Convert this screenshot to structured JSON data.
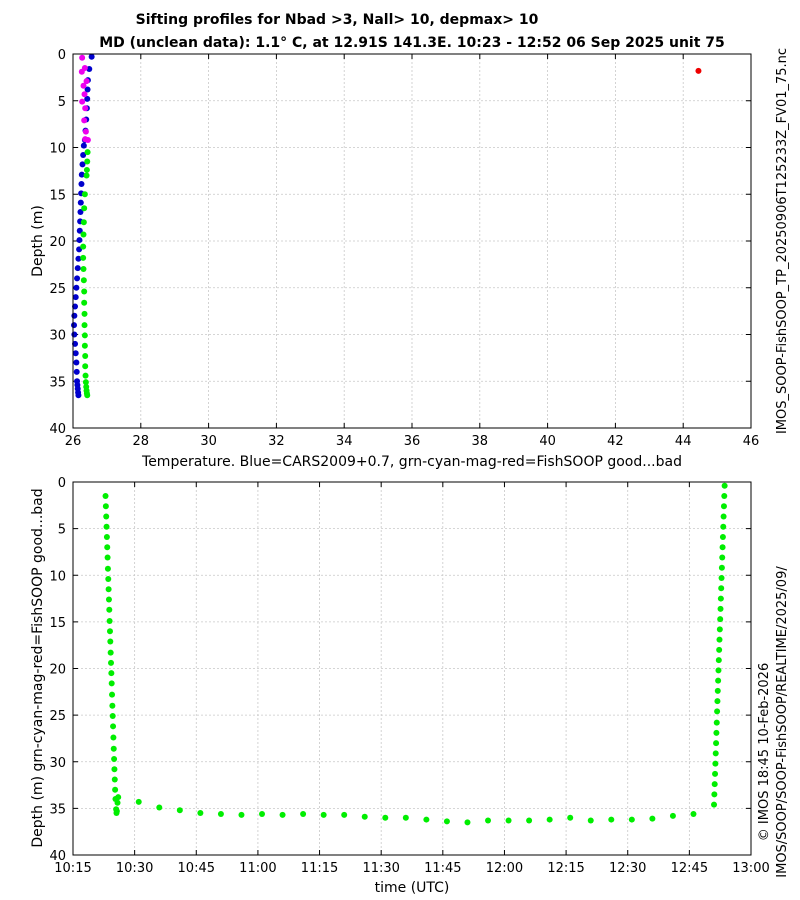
{
  "page": {
    "side_label_right": "IMOS_SOOP-FishSOOP_TP_20250906T125233Z_FV01_75.nc",
    "side_label_footer_1": "© IMOS 18:45 10-Feb-2026",
    "side_label_footer_2": "IMOS/SOOP/SOOP-FishSOOP/REALTIME/2025/09/"
  },
  "colors": {
    "cars": "#0000cc",
    "good": "#00ee00",
    "magenta": "#ee00ee",
    "bad": "#ee0000"
  },
  "chart_data": [
    {
      "type": "scatter",
      "title": "Sifting profiles for Nbad >3, Nall> 10, depmax> 10",
      "subtitle": "MD (unclean data): 1.1° C, at 12.91S 141.3E. 10:23 - 12:52 06 Sep 2025 unit 75",
      "xlabel": "Temperature. Blue=CARS2009+0.7, grn-cyan-mag-red=FishSOOP good...bad",
      "ylabel": "Depth (m)",
      "xlim": [
        26,
        46
      ],
      "ylim": [
        40,
        0
      ],
      "y_reversed": true,
      "xticks": [
        26,
        28,
        30,
        32,
        34,
        36,
        38,
        40,
        42,
        44,
        46
      ],
      "yticks": [
        0,
        5,
        10,
        15,
        20,
        25,
        30,
        35,
        40
      ],
      "grid": true,
      "series": [
        {
          "color": "cars",
          "points": [
            [
              26.55,
              0.3
            ],
            [
              26.48,
              1.6
            ],
            [
              26.44,
              2.8
            ],
            [
              26.43,
              3.8
            ],
            [
              26.42,
              4.8
            ],
            [
              26.41,
              5.8
            ],
            [
              26.39,
              7.0
            ],
            [
              26.37,
              8.2
            ],
            [
              26.35,
              9.2
            ],
            [
              26.32,
              9.8
            ],
            [
              26.3,
              10.8
            ],
            [
              26.28,
              11.8
            ],
            [
              26.26,
              12.9
            ],
            [
              26.25,
              13.9
            ],
            [
              26.24,
              14.9
            ],
            [
              26.23,
              15.9
            ],
            [
              26.22,
              16.9
            ],
            [
              26.21,
              17.9
            ],
            [
              26.2,
              18.9
            ],
            [
              26.19,
              19.9
            ],
            [
              26.18,
              20.9
            ],
            [
              26.16,
              21.9
            ],
            [
              26.14,
              22.9
            ],
            [
              26.12,
              24.0
            ],
            [
              26.1,
              25.0
            ],
            [
              26.08,
              26.0
            ],
            [
              26.06,
              27.0
            ],
            [
              26.04,
              28.0
            ],
            [
              26.03,
              29.0
            ],
            [
              26.04,
              30.0
            ],
            [
              26.06,
              31.0
            ],
            [
              26.08,
              32.0
            ],
            [
              26.1,
              33.0
            ],
            [
              26.11,
              34.0
            ],
            [
              26.12,
              35.0
            ],
            [
              26.13,
              35.4
            ],
            [
              26.14,
              35.8
            ],
            [
              26.15,
              36.2
            ],
            [
              26.16,
              36.5
            ]
          ]
        },
        {
          "color": "good",
          "points": [
            [
              26.43,
              10.5
            ],
            [
              26.42,
              11.5
            ],
            [
              26.41,
              12.4
            ],
            [
              26.4,
              13.0
            ],
            [
              26.35,
              15.0
            ],
            [
              26.33,
              16.5
            ],
            [
              26.32,
              18.0
            ],
            [
              26.31,
              19.3
            ],
            [
              26.3,
              20.6
            ],
            [
              26.3,
              21.8
            ],
            [
              26.31,
              23.0
            ],
            [
              26.32,
              24.2
            ],
            [
              26.33,
              25.4
            ],
            [
              26.33,
              26.6
            ],
            [
              26.34,
              27.8
            ],
            [
              26.34,
              29.0
            ],
            [
              26.35,
              30.1
            ],
            [
              26.35,
              31.2
            ],
            [
              26.36,
              32.3
            ],
            [
              26.36,
              33.4
            ],
            [
              26.37,
              34.4
            ],
            [
              26.38,
              35.1
            ],
            [
              26.39,
              35.6
            ],
            [
              26.4,
              36.0
            ],
            [
              26.41,
              36.3
            ],
            [
              26.42,
              36.5
            ]
          ]
        },
        {
          "color": "magenta",
          "points": [
            [
              26.27,
              0.4
            ],
            [
              26.35,
              1.5
            ],
            [
              26.26,
              1.9
            ],
            [
              26.4,
              2.9
            ],
            [
              26.31,
              3.4
            ],
            [
              26.34,
              4.3
            ],
            [
              26.27,
              5.1
            ],
            [
              26.36,
              5.8
            ],
            [
              26.33,
              7.1
            ],
            [
              26.38,
              8.3
            ],
            [
              26.36,
              9.1
            ],
            [
              26.44,
              9.2
            ]
          ]
        },
        {
          "color": "bad",
          "points": [
            [
              44.45,
              1.8
            ]
          ]
        }
      ]
    },
    {
      "type": "scatter",
      "xlabel": "time (UTC)",
      "ylabel": "Depth (m) grn-cyan-mag-red=FishSOOP good...bad",
      "xlim": [
        "10:15",
        "13:00"
      ],
      "ylim": [
        40,
        0
      ],
      "y_reversed": true,
      "xtick_labels": [
        "10:15",
        "10:30",
        "10:45",
        "11:00",
        "11:15",
        "11:30",
        "11:45",
        "12:00",
        "12:15",
        "12:30",
        "12:45",
        "13:00"
      ],
      "yticks": [
        0,
        5,
        10,
        15,
        20,
        25,
        30,
        35,
        40
      ],
      "grid": true,
      "series": [
        {
          "color": "good",
          "points": [
            [
              "10:22:55",
              1.5
            ],
            [
              "10:23:00",
              2.6
            ],
            [
              "10:23:05",
              3.7
            ],
            [
              "10:23:10",
              4.8
            ],
            [
              "10:23:15",
              5.9
            ],
            [
              "10:23:20",
              7.0
            ],
            [
              "10:23:25",
              8.1
            ],
            [
              "10:23:30",
              9.3
            ],
            [
              "10:23:35",
              10.4
            ],
            [
              "10:23:40",
              11.5
            ],
            [
              "10:23:45",
              12.6
            ],
            [
              "10:23:50",
              13.7
            ],
            [
              "10:23:55",
              14.9
            ],
            [
              "10:24:00",
              16.0
            ],
            [
              "10:24:05",
              17.1
            ],
            [
              "10:24:10",
              18.3
            ],
            [
              "10:24:15",
              19.4
            ],
            [
              "10:24:20",
              20.5
            ],
            [
              "10:24:25",
              21.6
            ],
            [
              "10:24:30",
              22.8
            ],
            [
              "10:24:35",
              24.0
            ],
            [
              "10:24:40",
              25.1
            ],
            [
              "10:24:45",
              26.2
            ],
            [
              "10:24:50",
              27.4
            ],
            [
              "10:24:55",
              28.6
            ],
            [
              "10:25:00",
              29.7
            ],
            [
              "10:25:05",
              30.8
            ],
            [
              "10:25:10",
              31.9
            ],
            [
              "10:25:15",
              33.0
            ],
            [
              "10:25:20",
              34.0
            ],
            [
              "10:25:30",
              35.1
            ],
            [
              "10:25:40",
              35.3
            ],
            [
              "10:25:50",
              34.4
            ],
            [
              "10:26:00",
              33.8
            ],
            [
              "10:25:35",
              35.5
            ],
            [
              "10:31:00",
              34.3
            ],
            [
              "10:36:00",
              34.9
            ],
            [
              "10:41:00",
              35.2
            ],
            [
              "10:46:00",
              35.5
            ],
            [
              "10:51:00",
              35.6
            ],
            [
              "10:56:00",
              35.7
            ],
            [
              "11:01:00",
              35.6
            ],
            [
              "11:06:00",
              35.7
            ],
            [
              "11:11:00",
              35.6
            ],
            [
              "11:16:00",
              35.7
            ],
            [
              "11:21:00",
              35.7
            ],
            [
              "11:26:00",
              35.9
            ],
            [
              "11:31:00",
              36.0
            ],
            [
              "11:36:00",
              36.0
            ],
            [
              "11:41:00",
              36.2
            ],
            [
              "11:46:00",
              36.4
            ],
            [
              "11:51:00",
              36.5
            ],
            [
              "11:56:00",
              36.3
            ],
            [
              "12:01:00",
              36.3
            ],
            [
              "12:06:00",
              36.3
            ],
            [
              "12:11:00",
              36.2
            ],
            [
              "12:16:00",
              36.0
            ],
            [
              "12:21:00",
              36.3
            ],
            [
              "12:26:00",
              36.2
            ],
            [
              "12:31:00",
              36.2
            ],
            [
              "12:36:00",
              36.1
            ],
            [
              "12:41:00",
              35.8
            ],
            [
              "12:46:00",
              35.6
            ],
            [
              "12:51:00",
              34.6
            ],
            [
              "12:51:05",
              33.5
            ],
            [
              "12:51:10",
              32.4
            ],
            [
              "12:51:15",
              31.3
            ],
            [
              "12:51:20",
              30.2
            ],
            [
              "12:51:25",
              29.1
            ],
            [
              "12:51:30",
              28.0
            ],
            [
              "12:51:35",
              26.9
            ],
            [
              "12:51:40",
              25.8
            ],
            [
              "12:51:45",
              24.6
            ],
            [
              "12:51:50",
              23.5
            ],
            [
              "12:51:55",
              22.4
            ],
            [
              "12:52:00",
              21.3
            ],
            [
              "12:52:05",
              20.2
            ],
            [
              "12:52:10",
              19.1
            ],
            [
              "12:52:15",
              18.0
            ],
            [
              "12:52:20",
              16.9
            ],
            [
              "12:52:25",
              15.8
            ],
            [
              "12:52:30",
              14.7
            ],
            [
              "12:52:35",
              13.6
            ],
            [
              "12:52:40",
              12.5
            ],
            [
              "12:52:45",
              11.4
            ],
            [
              "12:52:50",
              10.3
            ],
            [
              "12:52:55",
              9.2
            ],
            [
              "12:53:00",
              8.1
            ],
            [
              "12:53:05",
              7.0
            ],
            [
              "12:53:10",
              5.9
            ],
            [
              "12:53:15",
              4.8
            ],
            [
              "12:53:20",
              3.7
            ],
            [
              "12:53:25",
              2.6
            ],
            [
              "12:53:30",
              1.5
            ],
            [
              "12:53:35",
              0.4
            ]
          ]
        }
      ]
    }
  ]
}
